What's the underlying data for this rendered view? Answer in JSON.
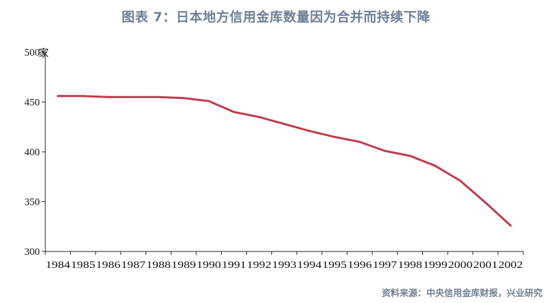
{
  "title": "图表 7：日本地方信用金库数量因为合并而持续下降",
  "source": "资料来源：中央信用金库财报，兴业研究",
  "chart_data": {
    "type": "line",
    "title": "图表 7：日本地方信用金库数量因为合并而持续下降",
    "ylabel": "家",
    "xlabel": "",
    "ylim": [
      300,
      500
    ],
    "yticks": [
      300,
      350,
      400,
      450,
      500
    ],
    "x": [
      "1984",
      "1985",
      "1986",
      "1987",
      "1988",
      "1989",
      "1990",
      "1991",
      "1992",
      "1993",
      "1994",
      "1995",
      "1996",
      "1997",
      "1998",
      "1999",
      "2000",
      "2001",
      "2002"
    ],
    "series": [
      {
        "values": [
          456,
          456,
          455,
          455,
          455,
          454,
          451,
          440,
          435,
          428,
          421,
          415,
          410,
          401,
          396,
          386,
          371,
          349,
          326
        ],
        "color": "#c0394d"
      }
    ],
    "grid": false,
    "legend": "none"
  }
}
